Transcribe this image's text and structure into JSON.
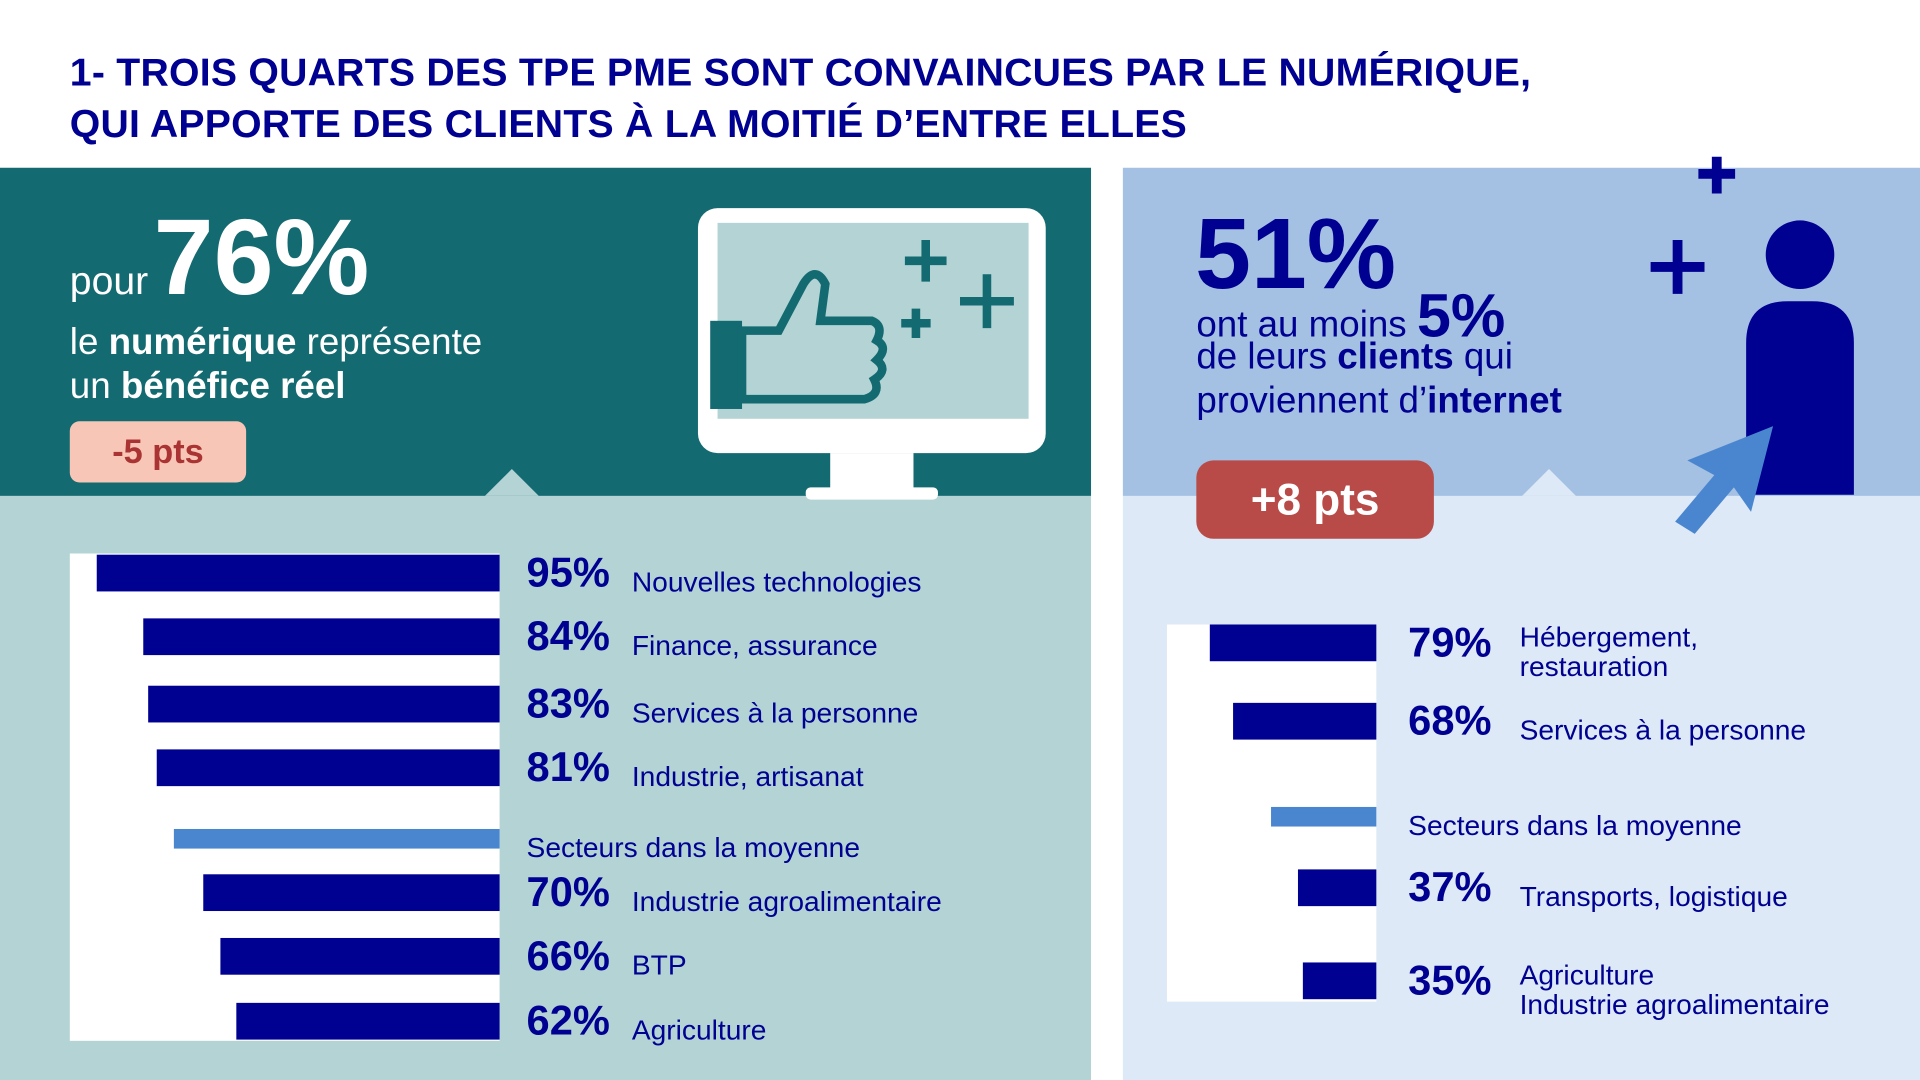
{
  "title_line1": "1- TROIS QUARTS DES TPE PME SONT CONVAINCUES PAR LE NUMÉRIQUE,",
  "title_line2": "QUI APPORTE DES CLIENTS À LA MOITIÉ D’ENTRE ELLES",
  "left": {
    "pour": "pour",
    "big": "76%",
    "line2_a": "le ",
    "line2_b": "numérique",
    "line2_c": " représente",
    "line3_a": "un ",
    "line3_b": "bénéfice réel",
    "badge": "-5 pts"
  },
  "right": {
    "big": "51%",
    "line1": "ont au moins ",
    "small_big": "5%",
    "line2_a": "de leurs ",
    "line2_b": "clients",
    "line2_c": " qui",
    "line3_a": "proviennent d’",
    "line3_b": "internet",
    "badge": "+8 pts"
  },
  "colors": {
    "navy": "#000091",
    "average": "#4a86cf",
    "teal": "#136a70",
    "badge_neg": "#f8c6b6",
    "badge_pos": "#b84a47"
  },
  "chart_data": [
    {
      "type": "bar",
      "orientation": "horizontal",
      "categories": [
        "Nouvelles technologies",
        "Finance, assurance",
        "Services à la personne",
        "Industrie, artisanat",
        "Secteurs dans la moyenne",
        "Industrie agroalimentaire",
        "BTP",
        "Agriculture"
      ],
      "labels": [
        "95%",
        "84%",
        "83%",
        "81%",
        "",
        "70%",
        "66%",
        "62%"
      ],
      "values": [
        95,
        84,
        83,
        81,
        77,
        70,
        66,
        62
      ],
      "highlight": "Secteurs dans la moyenne"
    },
    {
      "type": "bar",
      "orientation": "horizontal",
      "categories": [
        "Hébergement, restauration",
        "Services à la personne",
        "Secteurs dans la moyenne",
        "Transports, logistique",
        "Agriculture Industrie agroalimentaire"
      ],
      "category_lines": [
        [
          "Hébergement,",
          "restauration"
        ],
        [
          "Services à la personne"
        ],
        [
          "Secteurs dans la moyenne"
        ],
        [
          "Transports, logistique"
        ],
        [
          "Agriculture",
          "Industrie agroalimentaire"
        ]
      ],
      "labels": [
        "79%",
        "68%",
        "",
        "37%",
        "35%"
      ],
      "values": [
        79,
        68,
        50,
        37,
        35
      ],
      "highlight": "Secteurs dans la moyenne"
    }
  ]
}
